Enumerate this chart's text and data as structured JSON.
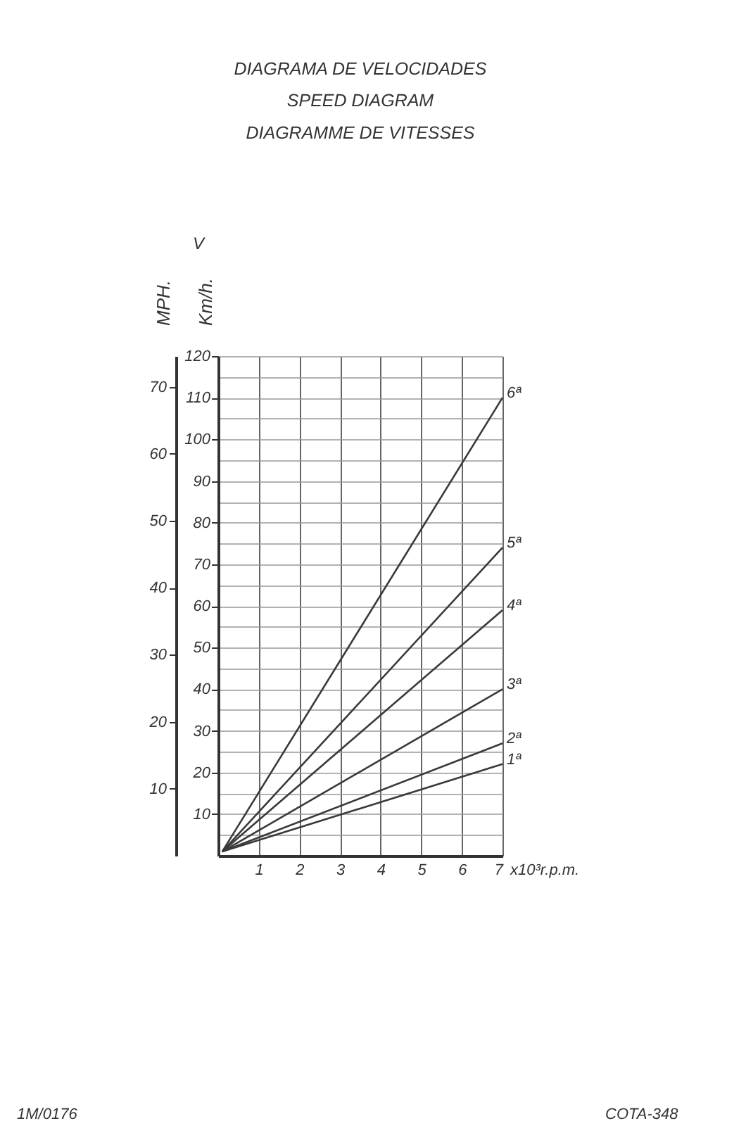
{
  "chart_data": {
    "type": "line",
    "title": "DIAGRAMA DE VELOCIDADES",
    "subtitle": "SPEED DIAGRAM\nDIAGRAMME DE VITESSES",
    "xlabel": "x10³r.p.m.",
    "ylabel": "Km/h.",
    "y2label": "MPH.",
    "annotations": [
      "V",
      "1M/0176",
      "COTA-348"
    ],
    "x": [
      0.1,
      7
    ],
    "series": [
      {
        "name": "1ª",
        "color": "#3a3a3a",
        "values": [
          1,
          22
        ]
      },
      {
        "name": "2ª",
        "color": "#3a3a3a",
        "values": [
          1,
          27
        ]
      },
      {
        "name": "3ª",
        "color": "#3a3a3a",
        "values": [
          1,
          40
        ]
      },
      {
        "name": "4ª",
        "color": "#3a3a3a",
        "values": [
          1,
          59
        ]
      },
      {
        "name": "5ª",
        "color": "#3a3a3a",
        "values": [
          1,
          74
        ]
      },
      {
        "name": "6ª",
        "color": "#3a3a3a",
        "values": [
          1,
          110
        ]
      }
    ],
    "xlim": [
      0,
      7
    ],
    "xticks": [
      1,
      2,
      3,
      4,
      5,
      6,
      7
    ],
    "ylim": [
      0,
      120
    ],
    "yticks": [
      {
        "value": 5,
        "label": null
      },
      10,
      {
        "value": 15,
        "label": null
      },
      20,
      {
        "value": 25,
        "label": null
      },
      30,
      {
        "value": 35,
        "label": null
      },
      40,
      {
        "value": 45,
        "label": null
      },
      50,
      {
        "value": 55,
        "label": null
      },
      60,
      {
        "value": 65,
        "label": null
      },
      70,
      {
        "value": 75,
        "label": null
      },
      80,
      {
        "value": 85,
        "label": null
      },
      90,
      {
        "value": 95,
        "label": null
      },
      100,
      {
        "value": 105,
        "label": null
      },
      110,
      {
        "value": 115,
        "label": null
      },
      120
    ],
    "y2lim": [
      0,
      74.6
    ],
    "y2ticks": [
      10,
      20,
      30,
      40,
      50,
      60,
      70
    ],
    "grid": true,
    "legend": false,
    "marker": "none",
    "line_style": "solid"
  }
}
